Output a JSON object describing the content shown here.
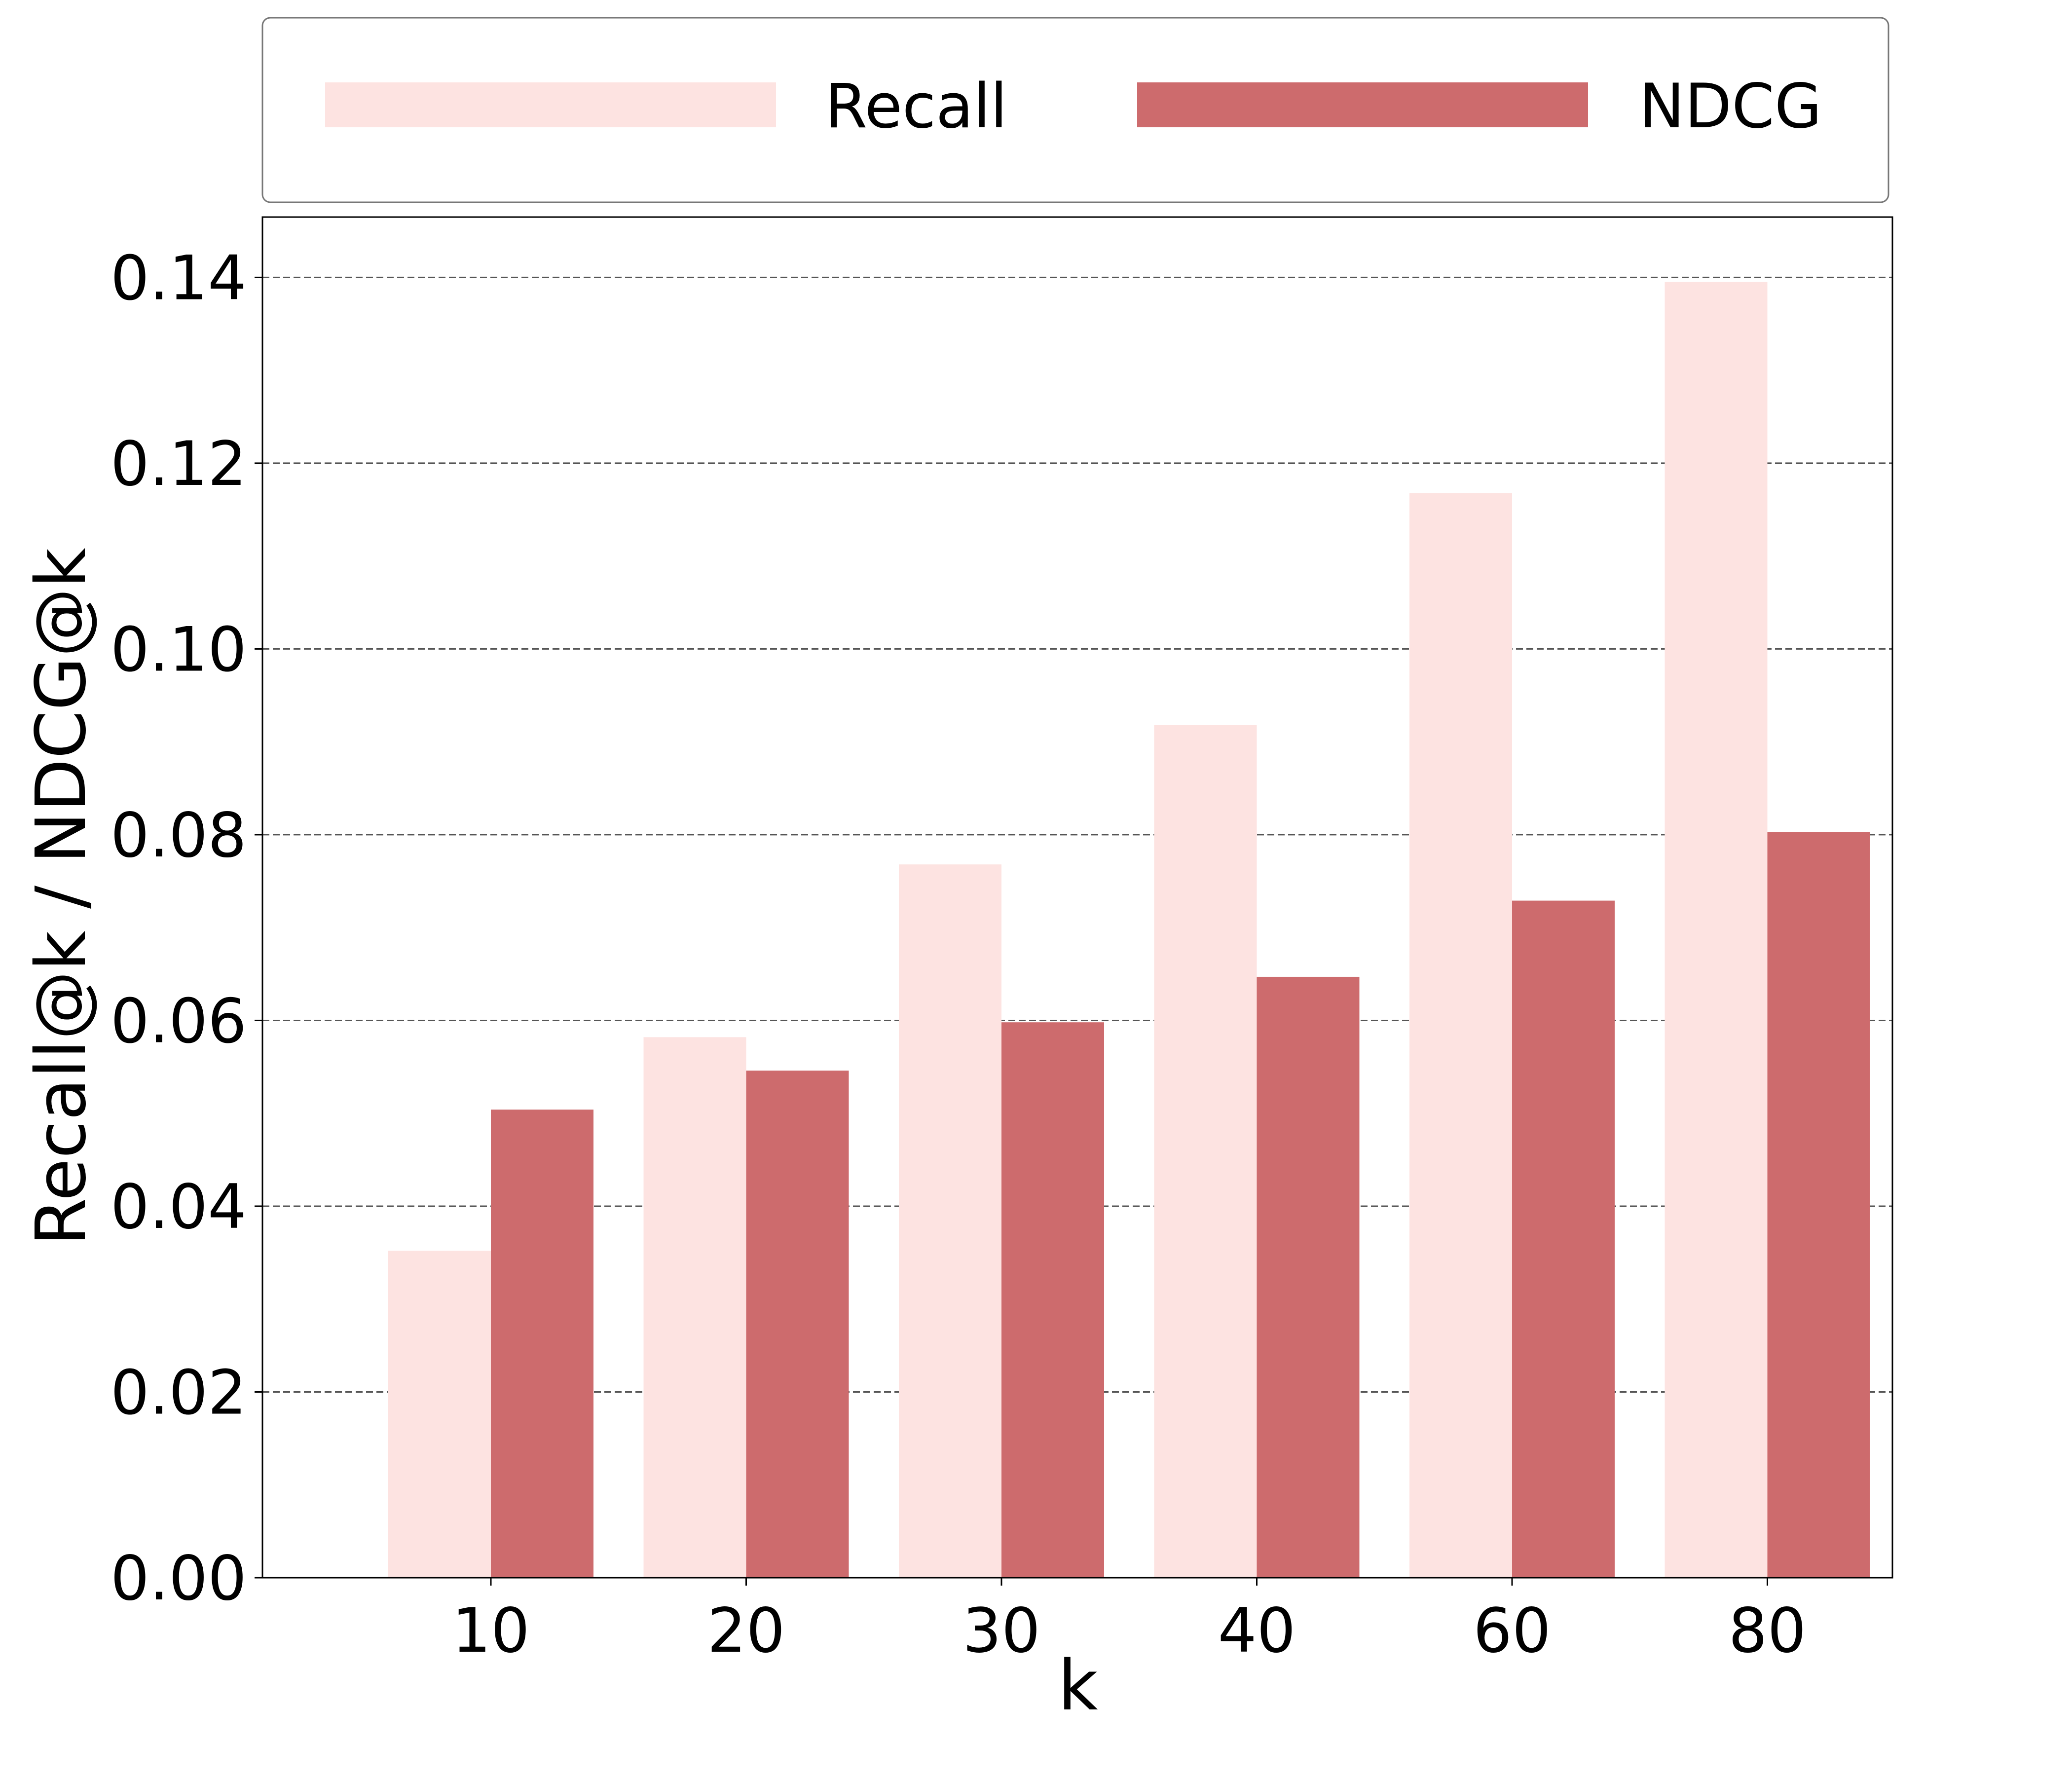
{
  "chart_data": {
    "type": "bar",
    "categories": [
      "10",
      "20",
      "30",
      "40",
      "60",
      "80"
    ],
    "series": [
      {
        "name": "Recall",
        "values": [
          0.0352,
          0.0582,
          0.0768,
          0.0918,
          0.1168,
          0.1395
        ]
      },
      {
        "name": "NDCG",
        "values": [
          0.0504,
          0.0546,
          0.0598,
          0.0647,
          0.0729,
          0.0803
        ]
      }
    ],
    "xlabel": "k",
    "ylabel": "Recall@k / NDCG@k",
    "ylim": [
      0,
      0.1465
    ],
    "yticks": [
      "0.00",
      "0.02",
      "0.04",
      "0.06",
      "0.08",
      "0.10",
      "0.12",
      "0.14"
    ],
    "grid": "horizontal dashed",
    "legend": "top",
    "colors": {
      "Recall": "#fde3e1",
      "NDCG": "#cd6b6d",
      "grid": "#555555",
      "axis": "#000000"
    }
  }
}
